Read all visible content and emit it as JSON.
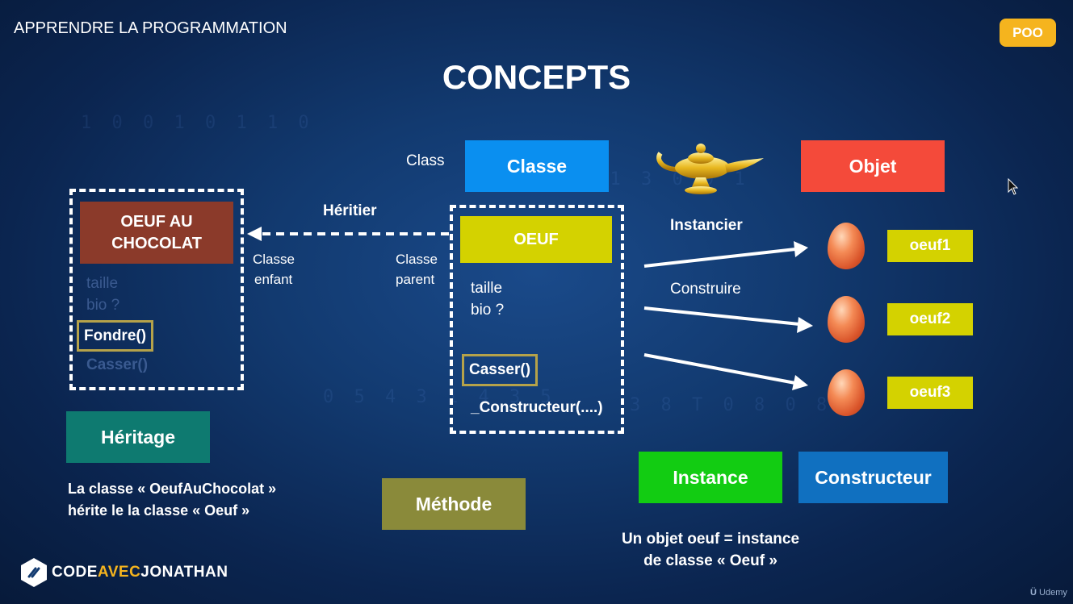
{
  "header": {
    "course_title": "APPRENDRE LA PROGRAMMATION",
    "badge": "POO"
  },
  "title": "CONCEPTS",
  "class_section": {
    "label_en": "Class",
    "classe": "Classe",
    "objet": "Objet",
    "lamp_icon": "magic-lamp-icon"
  },
  "parent_class": {
    "name": "OEUF",
    "role": [
      "Classe",
      "parent"
    ],
    "attributes": [
      "taille",
      "bio ?"
    ],
    "method": "Casser()",
    "constructor": "_Constructeur(....)"
  },
  "child_class": {
    "name": [
      "OEUF AU",
      "CHOCOLAT"
    ],
    "role": [
      "Classe",
      "enfant"
    ],
    "attributes": [
      "taille",
      "bio ?"
    ],
    "method": "Fondre()",
    "inherited_method": "Casser()"
  },
  "arrows": {
    "inherit": "Héritier",
    "instanciate": "Instancier",
    "construct": "Construire"
  },
  "instances": [
    "oeuf1",
    "oeuf2",
    "oeuf3"
  ],
  "concepts": {
    "heritage": "Héritage",
    "heritage_desc": [
      "La classe « OeufAuChocolat »",
      "hérite le la classe « Oeuf »"
    ],
    "methode": "Méthode",
    "instance": "Instance",
    "constructeur": "Constructeur",
    "instance_desc": [
      "Un objet oeuf = instance",
      "de classe « Oeuf »"
    ]
  },
  "brand": {
    "prefix": "CODE",
    "highlight": "AVEC",
    "suffix": "JONATHAN"
  },
  "watermark": "Udemy",
  "colors": {
    "classe": "#0a8ff0",
    "objet": "#f44a3a",
    "oeuf": "#d4d200",
    "chocolat": "#8b3a2a",
    "heritage": "#0e7a70",
    "methode": "#8a8a3a",
    "instance": "#12cc12",
    "constructeur": "#1070c0",
    "badge": "#f5b41e",
    "highlight": "#f5b41e"
  }
}
